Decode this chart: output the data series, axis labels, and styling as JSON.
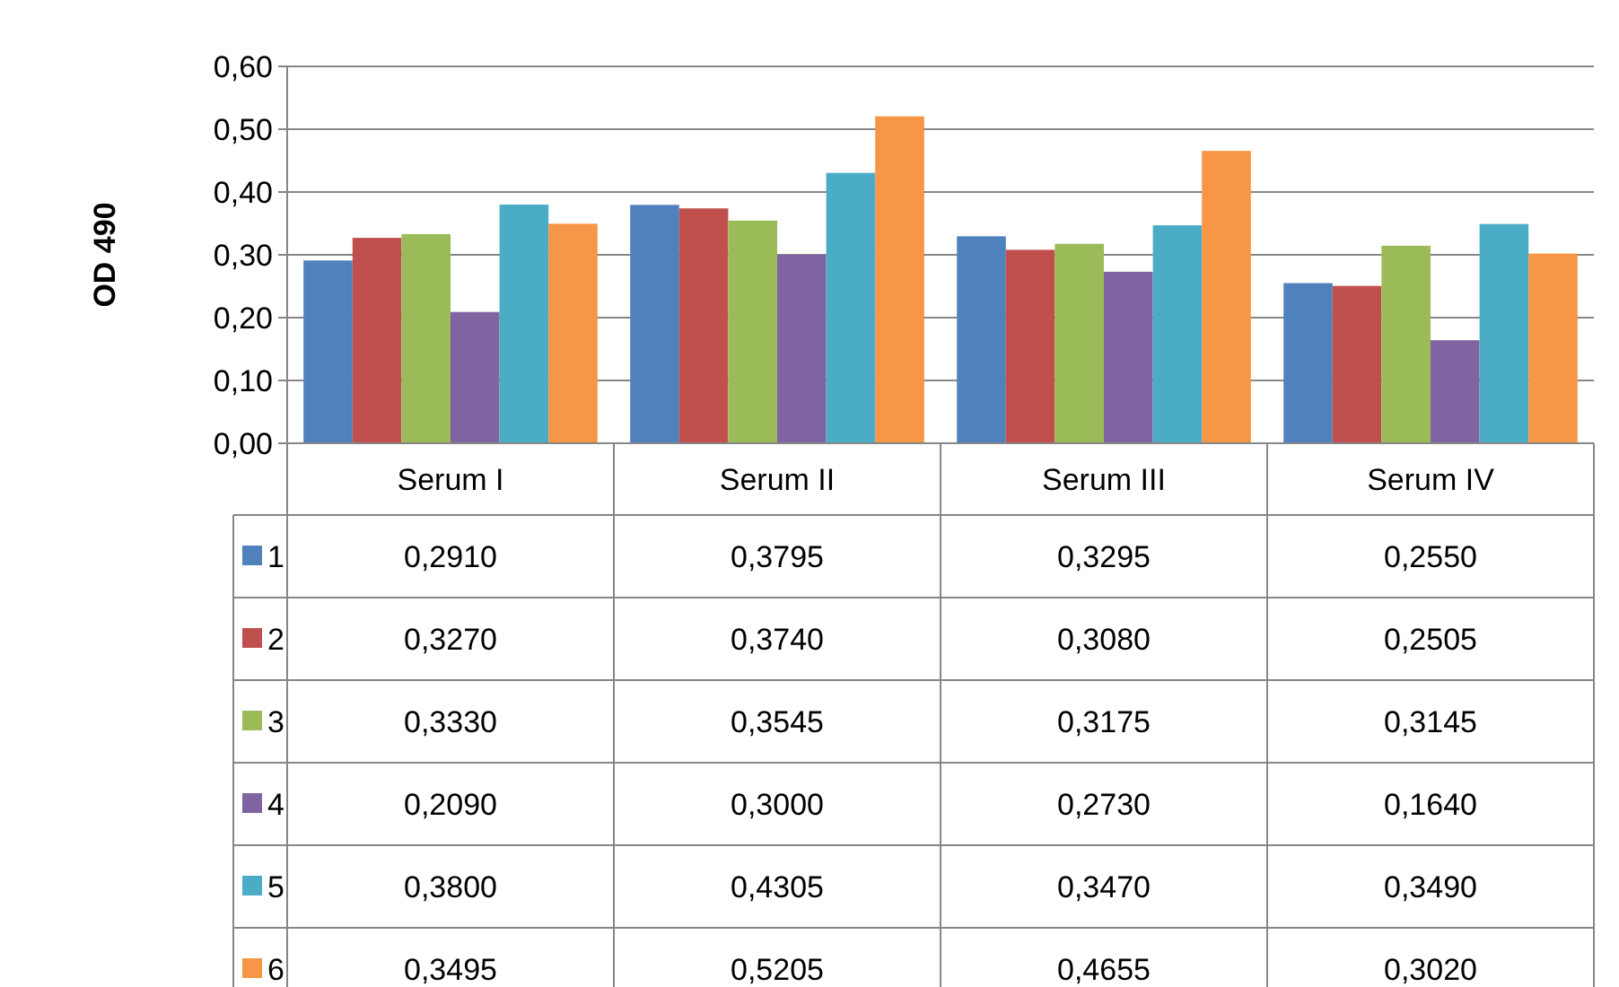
{
  "chart_data": {
    "type": "bar",
    "ylabel": "OD 490",
    "categories": [
      "Serum I",
      "Serum II",
      "Serum III",
      "Serum IV"
    ],
    "series": [
      {
        "name": "1",
        "color": "#4f81bd",
        "values": [
          0.291,
          0.3795,
          0.3295,
          0.255
        ],
        "value_labels": [
          "0,2910",
          "0,3795",
          "0,3295",
          "0,2550"
        ]
      },
      {
        "name": "2",
        "color": "#c0504d",
        "values": [
          0.327,
          0.374,
          0.308,
          0.2505
        ],
        "value_labels": [
          "0,3270",
          "0,3740",
          "0,3080",
          "0,2505"
        ]
      },
      {
        "name": "3",
        "color": "#9bbb59",
        "values": [
          0.333,
          0.3545,
          0.3175,
          0.3145
        ],
        "value_labels": [
          "0,3330",
          "0,3545",
          "0,3175",
          "0,3145"
        ]
      },
      {
        "name": "4",
        "color": "#8064a2",
        "values": [
          0.209,
          0.3,
          0.273,
          0.164
        ],
        "value_labels": [
          "0,2090",
          "0,3000",
          "0,2730",
          "0,1640"
        ]
      },
      {
        "name": "5",
        "color": "#4bacc6",
        "values": [
          0.38,
          0.4305,
          0.347,
          0.349
        ],
        "value_labels": [
          "0,3800",
          "0,4305",
          "0,3470",
          "0,3490"
        ]
      },
      {
        "name": "6",
        "color": "#f79646",
        "values": [
          0.3495,
          0.5205,
          0.4655,
          0.302
        ],
        "value_labels": [
          "0,3495",
          "0,5205",
          "0,4655",
          "0,3020"
        ]
      }
    ],
    "ylim": [
      0,
      0.6
    ],
    "yticks": [
      {
        "value": 0,
        "label": "0,00"
      },
      {
        "value": 0.1,
        "label": "0,10"
      },
      {
        "value": 0.2,
        "label": "0,20"
      },
      {
        "value": 0.3,
        "label": "0,30"
      },
      {
        "value": 0.4,
        "label": "0,40"
      },
      {
        "value": 0.5,
        "label": "0,50"
      },
      {
        "value": 0.6,
        "label": "0,60"
      }
    ],
    "grid": "y",
    "legend": "bottom left"
  }
}
